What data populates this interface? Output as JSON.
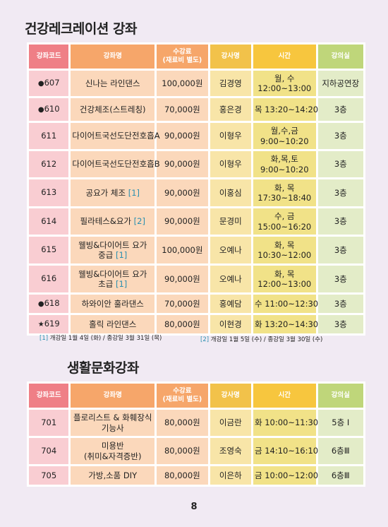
{
  "section1": {
    "title": "건강레크레이션 강좌",
    "headers": {
      "code": "강좌코드",
      "name": "강좌명",
      "fee_line1": "수강료",
      "fee_line2": "(재료비 별도)",
      "instructor": "강사명",
      "time": "시간",
      "room": "강의실"
    },
    "rows": [
      {
        "mark": "●",
        "code": "607",
        "name1": "신나는 라인댄스",
        "name2": "",
        "ref": "",
        "fee": "100,000원",
        "instructor": "김경영",
        "time1": "월, 수",
        "time2": "12:00~13:00",
        "room": "지하공연장"
      },
      {
        "mark": "●",
        "code": "610",
        "name1": "건강체조(스트레칭)",
        "name2": "",
        "ref": "",
        "fee": "70,000원",
        "instructor": "홍은경",
        "time1": "목 13:20~14:20",
        "time2": "",
        "room": "3층"
      },
      {
        "mark": "",
        "code": "611",
        "name1": "다이어트국선도단전호흡A",
        "name2": "",
        "ref": "",
        "fee": "90,000원",
        "instructor": "이형우",
        "time1": "월,수,금",
        "time2": "9:00~10:20",
        "room": "3층"
      },
      {
        "mark": "",
        "code": "612",
        "name1": "다이어트국선도단전호흡B",
        "name2": "",
        "ref": "",
        "fee": "90,000원",
        "instructor": "이형우",
        "time1": "화,목,토",
        "time2": "9:00~10:20",
        "room": "3층"
      },
      {
        "mark": "",
        "code": "613",
        "name1": "공요가 체조 ",
        "name2": "",
        "ref": "[1]",
        "fee": "90,000원",
        "instructor": "이홍심",
        "time1": "화, 목",
        "time2": "17:30~18:40",
        "room": "3층"
      },
      {
        "mark": "",
        "code": "614",
        "name1": "필라테스&요가 ",
        "name2": "",
        "ref": "[2]",
        "fee": "90,000원",
        "instructor": "문경미",
        "time1": "수, 금",
        "time2": "15:00~16:20",
        "room": "3층"
      },
      {
        "mark": "",
        "code": "615",
        "name1": "웰빙&다이어트 요가",
        "name2": "중급 ",
        "ref": "[1]",
        "fee": "100,000원",
        "instructor": "오예나",
        "time1": "화, 목",
        "time2": "10:30~12:00",
        "room": "3층"
      },
      {
        "mark": "",
        "code": "616",
        "name1": "웰빙&다이어트 요가",
        "name2": "초급 ",
        "ref": "[1]",
        "fee": "90,000원",
        "instructor": "오예나",
        "time1": "화, 목",
        "time2": "12:00~13:00",
        "room": "3층"
      },
      {
        "mark": "●",
        "code": "618",
        "name1": "하와이안 훌라댄스",
        "name2": "",
        "ref": "",
        "fee": "70,000원",
        "instructor": "홍예담",
        "time1": "수 11:00~12:30",
        "time2": "",
        "room": "3층"
      },
      {
        "mark": "★",
        "code": "619",
        "name1": "홀릭 라인댄스",
        "name2": "",
        "ref": "",
        "fee": "80,000원",
        "instructor": "이현경",
        "time1": "화 13:20~14:30",
        "time2": "",
        "room": "3층"
      }
    ],
    "footnote1_key": "[1]",
    "footnote1_text": " 개강일 1월 4일 (화) / 종강일  3월 31일 (목)",
    "footnote2_key": "[2]",
    "footnote2_text": " 개강일 1월 5일 (수) / 종강일  3월 30일 (수)"
  },
  "section2": {
    "title": "생활문화강좌",
    "headers": {
      "code": "강좌코드",
      "name": "강좌명",
      "fee_line1": "수강료",
      "fee_line2": "(재료비 별도)",
      "instructor": "강사명",
      "time": "시간",
      "room": "강의실"
    },
    "rows": [
      {
        "code": "701",
        "name1": "플로리스트 & 화훼장식",
        "name2": "기능사",
        "fee": "80,000원",
        "instructor": "이금란",
        "time": "화 10:00~11:30",
        "room": "5층 Ⅰ"
      },
      {
        "code": "704",
        "name1": "미용반",
        "name2": "(취미&자격증반)",
        "fee": "80,000원",
        "instructor": "조영숙",
        "time": "금 14:10~16:10",
        "room": "6층Ⅲ"
      },
      {
        "code": "705",
        "name1": "가방,소품 DIY",
        "name2": "",
        "fee": "80,000원",
        "instructor": "이은하",
        "time": "금 10:00~12:00",
        "room": "6층Ⅲ"
      }
    ]
  },
  "page_number": "8"
}
